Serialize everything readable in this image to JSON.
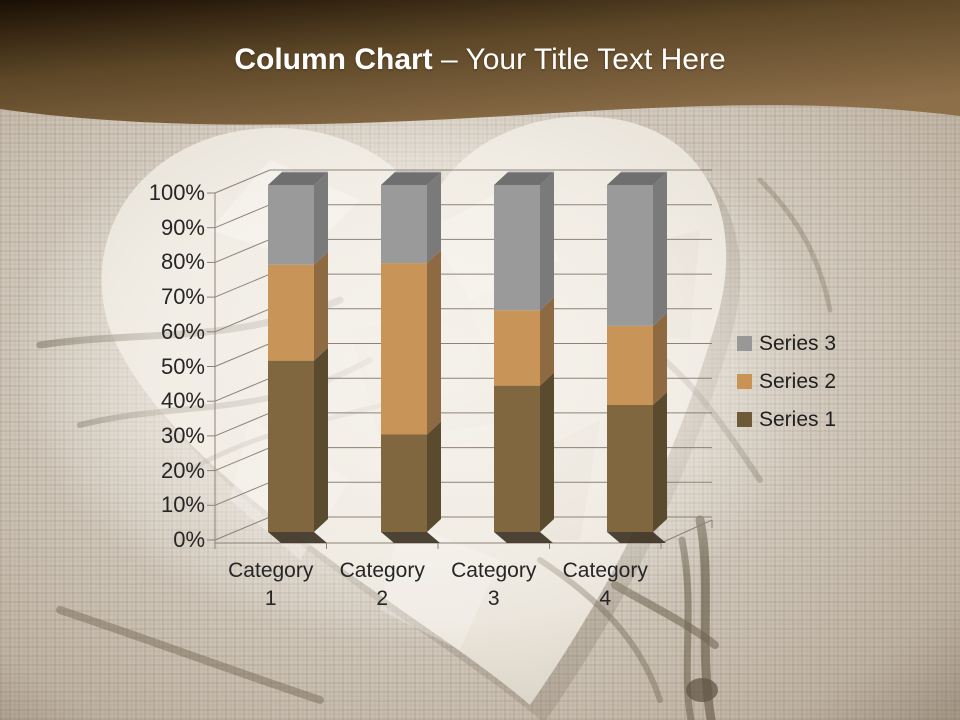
{
  "header": {
    "title_bold": "Column Chart",
    "title_rest": "– Your Title Text Here"
  },
  "chart_data": {
    "type": "bar",
    "subtype": "3d-100-percent-stacked-column",
    "title": "",
    "xlabel": "",
    "ylabel": "",
    "categories": [
      "Category 1",
      "Category 2",
      "Category 3",
      "Category 4"
    ],
    "series": [
      {
        "name": "Series 1",
        "values": [
          49.4,
          28.1,
          42.2,
          36.6
        ],
        "front_color": "#816740",
        "side_color": "#5a4a2e",
        "legend_color": "#6e5a37"
      },
      {
        "name": "Series 2",
        "values": [
          27.6,
          49.4,
          21.7,
          22.8
        ],
        "front_color": "#c99457",
        "side_color": "#8d6a41",
        "legend_color": "#c89355"
      },
      {
        "name": "Series 3",
        "values": [
          23.0,
          22.5,
          36.1,
          40.6
        ],
        "front_color": "#9a9a9a",
        "side_color": "#7a7a7a",
        "legend_color": "#989898",
        "top_color": "#6f6f6f"
      }
    ],
    "y_ticks": [
      "0%",
      "10%",
      "20%",
      "30%",
      "40%",
      "50%",
      "60%",
      "70%",
      "80%",
      "90%",
      "100%"
    ],
    "ylim": [
      0,
      100
    ],
    "unit": "percent",
    "grid": true,
    "legend_position": "right",
    "legend_order": [
      "Series 3",
      "Series 2",
      "Series 1"
    ]
  },
  "colors": {
    "header_gradient_dark": "#1a0f04",
    "header_gradient_mid": "#5d4727",
    "header_gradient_light": "#8d6f4a",
    "title_text": "#ffffff",
    "axis_text": "#262626",
    "gridline": "#8b8379",
    "background_base": "#c8beb0",
    "heart_paper": "#e7e1d6",
    "twig": "#42351f",
    "bar_bottom_shadow": "#3b3020"
  }
}
